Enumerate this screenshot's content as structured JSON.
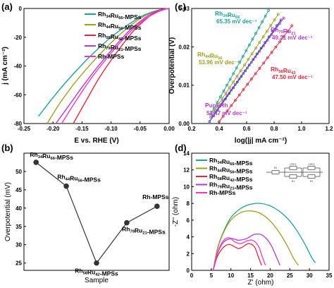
{
  "colors": {
    "teal": "#1aa39a",
    "olive": "#a0a020",
    "red": "#e8283a",
    "purple": "#b33ad6",
    "pink": "#ff33cc",
    "darkgray": "#333333",
    "blue": "#2b4aa8"
  },
  "chart_data": [
    {
      "panel": "(a)",
      "type": "line",
      "xlabel": "E vs. RHE (V)",
      "ylabel": "j (mA cm⁻²)",
      "xlim": [
        -0.25,
        0.0
      ],
      "ylim": [
        -80,
        0
      ],
      "xticks": [
        -0.25,
        -0.2,
        -0.15,
        -0.1,
        -0.05,
        0.0
      ],
      "xtick_labels": [
        "-0.25",
        "-0.20",
        "-0.15",
        "-0.10",
        "-0.05",
        "0.00"
      ],
      "yticks": [
        -80,
        -60,
        -40,
        -20,
        0
      ],
      "ytick_labels": [
        "-80",
        "-60",
        "-40",
        "-20",
        "0"
      ],
      "legend_position": "top-right",
      "series": [
        {
          "name": "Rh34Ru66-MPSs",
          "color": "#1aa39a",
          "x": [
            -0.225,
            -0.2,
            -0.175,
            -0.15,
            -0.125,
            -0.1,
            -0.075,
            -0.05,
            -0.03,
            -0.015,
            0.0
          ],
          "y": [
            -75,
            -62,
            -50,
            -39,
            -29,
            -20,
            -12.5,
            -6,
            -2.5,
            -0.8,
            0
          ]
        },
        {
          "name": "Rh44Ru56-MPSs",
          "color": "#a0a020",
          "x": [
            -0.21,
            -0.19,
            -0.165,
            -0.14,
            -0.115,
            -0.09,
            -0.07,
            -0.05,
            -0.03,
            -0.015,
            0.0
          ],
          "y": [
            -80,
            -67,
            -53,
            -41,
            -30,
            -20,
            -13,
            -7,
            -2.8,
            -0.8,
            0
          ]
        },
        {
          "name": "Rh58Ru42-MPSs",
          "color": "#e8283a",
          "x": [
            -0.165,
            -0.14,
            -0.12,
            -0.1,
            -0.08,
            -0.06,
            -0.04,
            -0.025,
            -0.01,
            0.0
          ],
          "y": [
            -80,
            -62,
            -48,
            -36,
            -25,
            -15,
            -7.5,
            -3,
            -0.6,
            0
          ]
        },
        {
          "name": "Rh79Ru21-MPSs",
          "color": "#b33ad6",
          "x": [
            -0.195,
            -0.17,
            -0.145,
            -0.12,
            -0.095,
            -0.07,
            -0.05,
            -0.03,
            -0.015,
            0.0
          ],
          "y": [
            -80,
            -66,
            -52,
            -39,
            -27,
            -16,
            -9,
            -3.5,
            -1,
            0
          ]
        },
        {
          "name": "Rh-MPSs",
          "color": "#ff33cc",
          "x": [
            -0.185,
            -0.16,
            -0.135,
            -0.11,
            -0.085,
            -0.06,
            -0.04,
            -0.02,
            -0.008,
            0.0
          ],
          "y": [
            -80,
            -64,
            -49,
            -36,
            -24,
            -13.5,
            -7,
            -2.5,
            -0.7,
            0
          ]
        }
      ],
      "legend": [
        {
          "label_main": "Rh",
          "sub1": "34",
          "mid": "Ru",
          "sub2": "66",
          "suffix": "-MPSs",
          "color": "#1aa39a"
        },
        {
          "label_main": "Rh",
          "sub1": "44",
          "mid": "Ru",
          "sub2": "56",
          "suffix": "-MPSs",
          "color": "#a0a020"
        },
        {
          "label_main": "Rh",
          "sub1": "58",
          "mid": "Ru",
          "sub2": "42",
          "suffix": "-MPSs",
          "color": "#e8283a"
        },
        {
          "label_main": "Rh",
          "sub1": "79",
          "mid": "Ru",
          "sub2": "21",
          "suffix": "-MPSs",
          "color": "#b33ad6"
        },
        {
          "label_main": "Rh-MPSs",
          "sub1": "",
          "mid": "",
          "sub2": "",
          "suffix": "",
          "color": "#ff33cc"
        }
      ]
    },
    {
      "panel": "(b)",
      "type": "line",
      "xlabel": "Sample",
      "ylabel": "Overpotential (mV)",
      "ylim": [
        23,
        55
      ],
      "yticks": [
        25,
        30,
        35,
        40,
        45,
        50
      ],
      "ytick_labels": [
        "25",
        "30",
        "35",
        "40",
        "45",
        "50"
      ],
      "points": [
        {
          "x": 1,
          "y": 52.5,
          "label_main": "Rh",
          "sub1": "34",
          "mid": "Ru",
          "sub2": "66",
          "suffix": "-MPSs"
        },
        {
          "x": 2,
          "y": 46,
          "label_main": "Rh",
          "sub1": "44",
          "mid": "Ru",
          "sub2": "56",
          "suffix": "-MPSs"
        },
        {
          "x": 3,
          "y": 25,
          "label_main": "Rh",
          "sub1": "58",
          "mid": "Ru",
          "sub2": "42",
          "suffix": "-MPSs"
        },
        {
          "x": 4,
          "y": 36,
          "label_main": "Rh",
          "sub1": "79",
          "mid": "Ru",
          "sub2": "21",
          "suffix": "-MPSs"
        },
        {
          "x": 5,
          "y": 40.5,
          "label_main": "Rh-MPSs",
          "sub1": "",
          "mid": "",
          "sub2": "",
          "suffix": ""
        }
      ]
    },
    {
      "panel": "(c)",
      "type": "scatter",
      "xlabel": "log(|j| mA cm⁻²)",
      "ylabel": "Overpotential (V)",
      "xlim": [
        0.2,
        1.2
      ],
      "ylim": [
        0.0,
        0.03
      ],
      "xticks": [
        0.2,
        0.4,
        0.6,
        0.8,
        1.0,
        1.2
      ],
      "xtick_labels": [
        "0.2",
        "0.4",
        "0.6",
        "0.8",
        "1.0",
        "1.2"
      ],
      "yticks": [
        0.0,
        0.01,
        0.02,
        0.03
      ],
      "ytick_labels": [
        "0.00",
        "0.01",
        "0.02",
        "0.03"
      ],
      "series": [
        {
          "name": "Rh34Ru66",
          "tafel": "65.35 mV dec⁻¹",
          "color": "#1aa39a",
          "x": [
            0.34,
            0.76
          ],
          "y": [
            0.0025,
            0.0295
          ]
        },
        {
          "name": "Rh44Ru56",
          "tafel": "53.96 mV dec⁻¹",
          "color": "#a0a020",
          "x": [
            0.34,
            0.83
          ],
          "y": [
            0.002,
            0.0285
          ]
        },
        {
          "name": "Rh79Ru21",
          "tafel": "49.21 mV dec⁻¹",
          "color": "#b33ad6",
          "x": [
            0.34,
            0.87
          ],
          "y": [
            0.0015,
            0.0275
          ]
        },
        {
          "name": "Rh58Ru42",
          "tafel": "47.50 mV dec⁻¹",
          "color": "#e8283a",
          "x": [
            0.4,
            0.93
          ],
          "y": [
            0.0005,
            0.0255
          ]
        },
        {
          "name": "Pure Rh",
          "tafel": "52.47 mV dec⁻¹",
          "color": "#2b4aa8",
          "x": [
            0.33,
            0.85
          ],
          "y": [
            0.0005,
            0.027
          ]
        }
      ],
      "annotations": [
        {
          "main": "Rh",
          "sub1": "34",
          "mid": "Ru",
          "sub2": "66",
          "color": "#1aa39a",
          "value": "65.35 mV dec⁻¹",
          "value_color": "#1aa39a"
        },
        {
          "main": "Rh",
          "sub1": "79",
          "mid": "Ru",
          "sub2": "21",
          "color": "#b33ad6",
          "value": "49.21 mV dec⁻¹",
          "value_color": "#b33ad6"
        },
        {
          "main": "Rh",
          "sub1": "44",
          "mid": "Ru",
          "sub2": "56",
          "color": "#a0a020",
          "value": "53.96 mV dec⁻¹",
          "value_color": "#a0a020"
        },
        {
          "main": "Rh",
          "sub1": "58",
          "mid": "Ru",
          "sub2": "42",
          "color": "#e8283a",
          "value": "47.50 mV dec⁻¹",
          "value_color": "#e8283a"
        },
        {
          "main": "Pure Rh",
          "sub1": "",
          "mid": "",
          "sub2": "",
          "color": "#b33ad6",
          "value": "52.47 mV dec⁻¹",
          "value_color": "#b33ad6"
        }
      ]
    },
    {
      "panel": "(d)",
      "type": "line",
      "xlabel": "Z' (ohm)",
      "ylabel": "-Z'' (ohm)",
      "xlim": [
        0,
        35
      ],
      "ylim": [
        0,
        14
      ],
      "xticks": [
        0,
        5,
        10,
        15,
        20,
        25,
        30,
        35
      ],
      "xtick_labels": [
        "0",
        "5",
        "10",
        "15",
        "20",
        "25",
        "30",
        "35"
      ],
      "yticks": [
        0,
        2,
        4,
        6,
        8,
        10,
        12,
        14
      ],
      "ytick_labels": [
        "0",
        "2",
        "4",
        "6",
        "8",
        "10",
        "12",
        "14"
      ],
      "legend_position": "top-left",
      "series": [
        {
          "name": "Rh34Ru66-MPSs",
          "color": "#1aa39a",
          "x": [
            5.5,
            6.5,
            8,
            10,
            12.5,
            15,
            17.5,
            20,
            22.5,
            25,
            27,
            29,
            30.5,
            31.5
          ],
          "y": [
            0,
            2.5,
            4.5,
            6.3,
            7.4,
            7.9,
            8.0,
            7.7,
            7.0,
            5.9,
            4.6,
            3.0,
            1.6,
            0.9
          ]
        },
        {
          "name": "Rh44Ru56-MPSs",
          "color": "#a0a020",
          "x": [
            5.5,
            6.5,
            8,
            10,
            12.5,
            15,
            17.5,
            20,
            22.5,
            24.5,
            26,
            27.2
          ],
          "y": [
            0,
            2.4,
            4.4,
            6.0,
            6.9,
            7.1,
            6.8,
            5.9,
            4.4,
            2.8,
            1.4,
            0.6
          ]
        },
        {
          "name": "Rh58Ru42-MPSs",
          "color": "#e8283a",
          "x": [
            5.5,
            6.5,
            8,
            9.5,
            11,
            12,
            13,
            14.5,
            16,
            17,
            17.8
          ],
          "y": [
            0,
            1.6,
            2.7,
            3.1,
            2.8,
            2.6,
            2.8,
            3.2,
            2.8,
            1.6,
            0.6
          ]
        },
        {
          "name": "Rh79Ru21-MPSs",
          "color": "#b33ad6",
          "x": [
            5.5,
            6.5,
            8,
            10,
            12,
            14,
            16,
            18,
            20,
            21.5,
            22.5
          ],
          "y": [
            0,
            1.9,
            3.3,
            3.8,
            3.6,
            3.8,
            4.3,
            4.2,
            3.2,
            1.7,
            0.6
          ]
        },
        {
          "name": "Rh-MPSs",
          "color": "#ff33cc",
          "x": [
            5.5,
            6.5,
            8,
            9.5,
            11,
            12.5,
            14,
            15.5,
            17,
            18,
            18.8
          ],
          "y": [
            0,
            2.0,
            3.5,
            3.9,
            3.4,
            3.2,
            3.5,
            3.6,
            2.9,
            1.6,
            0.6
          ]
        }
      ],
      "legend": [
        {
          "label_main": "Rh",
          "sub1": "34",
          "mid": "Ru",
          "sub2": "66",
          "suffix": "-MPSs",
          "color": "#1aa39a"
        },
        {
          "label_main": "Rh",
          "sub1": "44",
          "mid": "Ru",
          "sub2": "56",
          "suffix": "-MPSs",
          "color": "#a0a020"
        },
        {
          "label_main": "Rh",
          "sub1": "58",
          "mid": "Ru",
          "sub2": "42",
          "suffix": "-MPSs",
          "color": "#e8283a"
        },
        {
          "label_main": "Rh",
          "sub1": "79",
          "mid": "Ru",
          "sub2": "21",
          "suffix": "-MPSs",
          "color": "#b33ad6"
        },
        {
          "label_main": "Rh-MPSs",
          "sub1": "",
          "mid": "",
          "sub2": "",
          "suffix": "",
          "color": "#ff33cc"
        }
      ],
      "circuit_labels": [
        "Rs",
        "CPE1",
        "R1",
        "CPE2",
        "R2"
      ]
    }
  ]
}
